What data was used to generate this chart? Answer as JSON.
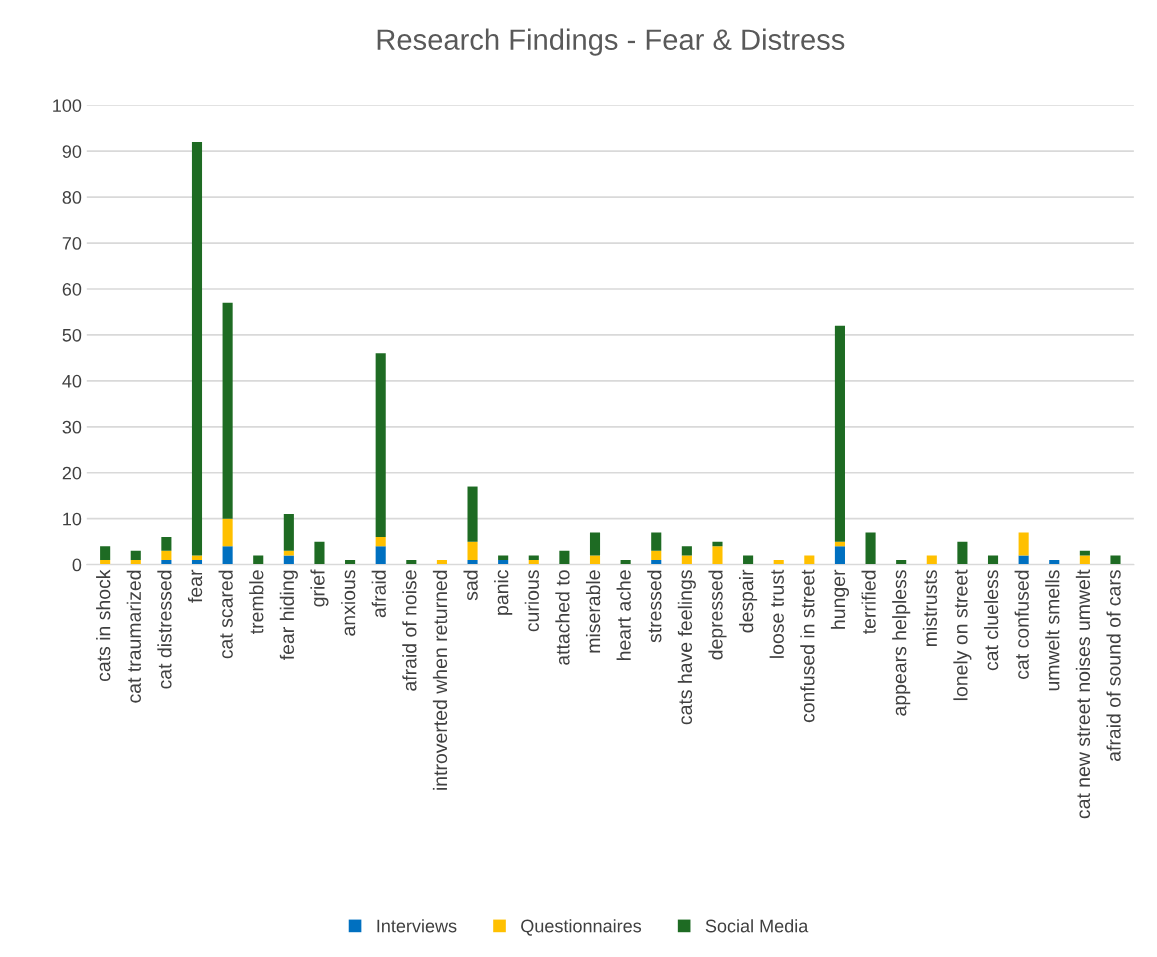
{
  "chart_data": {
    "type": "bar",
    "title": "Research Findings - Fear & Distress",
    "stacked": true,
    "categories": [
      "cats in shock",
      "cat traumarized",
      "cat distressed",
      "fear",
      "cat scared",
      "tremble",
      "fear hiding",
      "grief",
      "anxious",
      "afraid",
      "afraid of noise",
      "introverted when returned",
      "sad",
      "panic",
      "curious",
      "attached to",
      "miserable",
      "heart ache",
      "stressed",
      "cats have feelings",
      "depressed",
      "despair",
      "loose trust",
      "confused in street",
      "hunger",
      "terrified",
      "appears helpless",
      "mistrusts",
      "lonely on street",
      "cat clueless",
      "cat confused",
      "umwelt smells",
      "cat new street noises umwelt",
      "afraid of sound of cars"
    ],
    "series": [
      {
        "name": "Interviews",
        "color": "#0070c0",
        "values": [
          0,
          0,
          1,
          1,
          4,
          0,
          2,
          0,
          0,
          4,
          0,
          0,
          1,
          1,
          0,
          0,
          0,
          0,
          1,
          0,
          0,
          0,
          0,
          0,
          4,
          0,
          0,
          0,
          0,
          0,
          2,
          1,
          0,
          0
        ]
      },
      {
        "name": "Questionnaires",
        "color": "#ffc000",
        "values": [
          1,
          1,
          2,
          1,
          6,
          0,
          1,
          0,
          0,
          2,
          0,
          1,
          4,
          0,
          1,
          0,
          2,
          0,
          2,
          2,
          4,
          0,
          1,
          2,
          1,
          0,
          0,
          2,
          0,
          0,
          5,
          0,
          2,
          0
        ]
      },
      {
        "name": "Social Media",
        "color": "#1e6b23",
        "values": [
          3,
          2,
          3,
          90,
          47,
          2,
          8,
          5,
          1,
          40,
          1,
          0,
          12,
          1,
          1,
          3,
          5,
          1,
          4,
          2,
          1,
          2,
          0,
          0,
          47,
          7,
          1,
          0,
          5,
          2,
          0,
          0,
          1,
          2
        ]
      }
    ],
    "ylim": [
      0,
      100
    ],
    "yticks": [
      0,
      10,
      20,
      30,
      40,
      50,
      60,
      70,
      80,
      90,
      100
    ],
    "grid": "y",
    "legend": "bottom"
  }
}
